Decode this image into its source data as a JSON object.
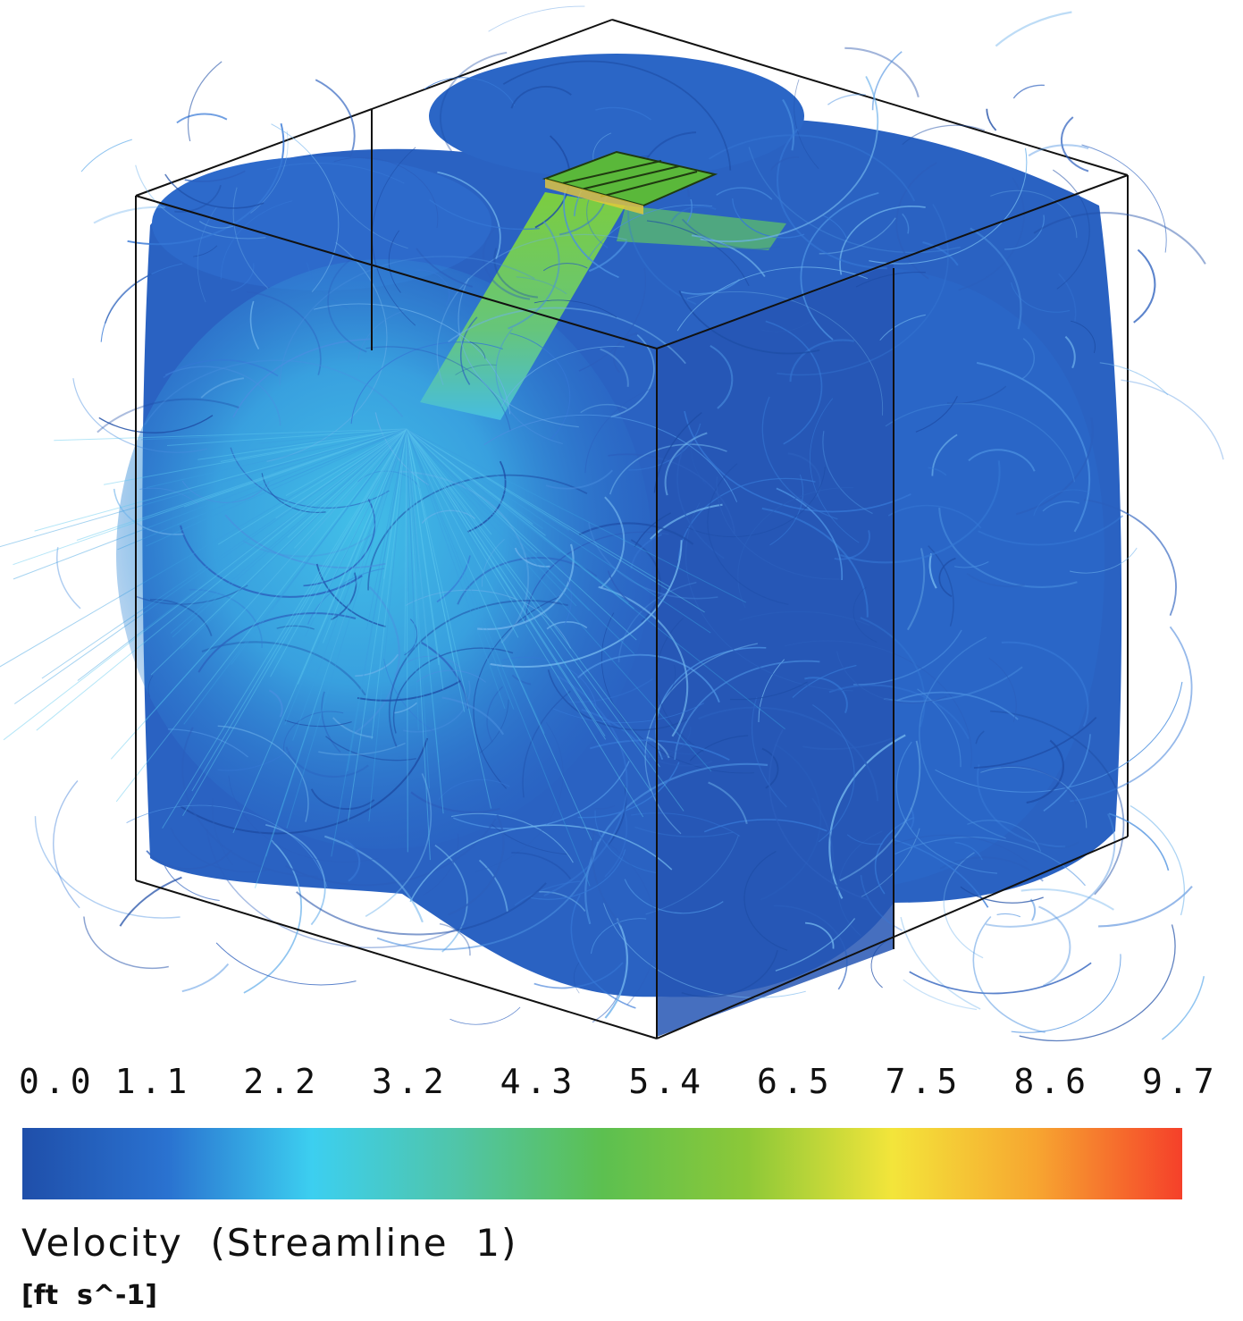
{
  "figure": {
    "legend": {
      "title": "Velocity  (Streamline  1)",
      "units": "[ft  s^-1]",
      "ticks": [
        "0.0",
        "1.1",
        "2.2",
        "3.2",
        "4.3",
        "5.4",
        "6.5",
        "7.5",
        "8.6",
        "9.7"
      ],
      "range": [
        0.0,
        9.7
      ],
      "colormap": [
        "#1f4faa",
        "#2a72d0",
        "#3ccff0",
        "#50c5a8",
        "#5cc050",
        "#8cc838",
        "#f3e53a",
        "#f7a530",
        "#f5402a"
      ]
    },
    "colors": {
      "background": "#ffffff",
      "box_edges": "#111111",
      "low_velocity": "#2356b8",
      "mid_velocity": "#3fbfe8",
      "high_velocity": "#6cc24a"
    }
  }
}
